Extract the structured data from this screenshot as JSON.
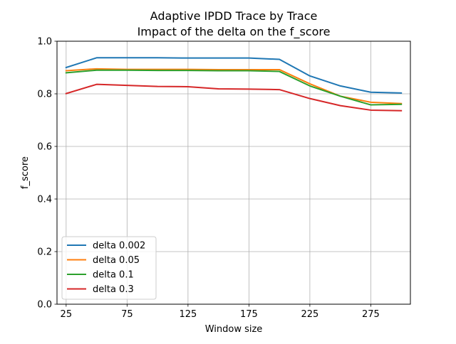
{
  "chart_data": {
    "type": "line",
    "title": "Adaptive IPDD Trace by Trace",
    "subtitle": "Impact of the delta on the f_score",
    "xlabel": "Window size",
    "ylabel": "f_score",
    "xlim": [
      17.5,
      307.5
    ],
    "ylim": [
      0.0,
      1.0
    ],
    "x_ticks": [
      25,
      75,
      125,
      175,
      225,
      275
    ],
    "y_ticks": [
      0.0,
      0.2,
      0.4,
      0.6,
      0.8,
      1.0
    ],
    "x_tick_labels": [
      "25",
      "75",
      "125",
      "175",
      "225",
      "275"
    ],
    "y_tick_labels": [
      "0.0",
      "0.2",
      "0.4",
      "0.6",
      "0.8",
      "1.0"
    ],
    "grid": true,
    "legend_position": "lower-left",
    "x": [
      25,
      50,
      75,
      100,
      125,
      150,
      175,
      200,
      225,
      250,
      275,
      300
    ],
    "series": [
      {
        "name": "delta 0.002",
        "color": "#1f77b4",
        "values": [
          0.9,
          0.937,
          0.937,
          0.937,
          0.936,
          0.936,
          0.936,
          0.931,
          0.868,
          0.83,
          0.806,
          0.803
        ]
      },
      {
        "name": "delta 0.05",
        "color": "#ff7f0e",
        "values": [
          0.888,
          0.895,
          0.893,
          0.893,
          0.893,
          0.892,
          0.892,
          0.892,
          0.838,
          0.791,
          0.768,
          0.763
        ]
      },
      {
        "name": "delta 0.1",
        "color": "#2ca02c",
        "values": [
          0.88,
          0.89,
          0.89,
          0.889,
          0.889,
          0.888,
          0.888,
          0.885,
          0.83,
          0.791,
          0.758,
          0.76
        ]
      },
      {
        "name": "delta 0.3",
        "color": "#d62728",
        "values": [
          0.801,
          0.836,
          0.832,
          0.828,
          0.827,
          0.819,
          0.818,
          0.816,
          0.782,
          0.755,
          0.738,
          0.736
        ]
      }
    ]
  }
}
